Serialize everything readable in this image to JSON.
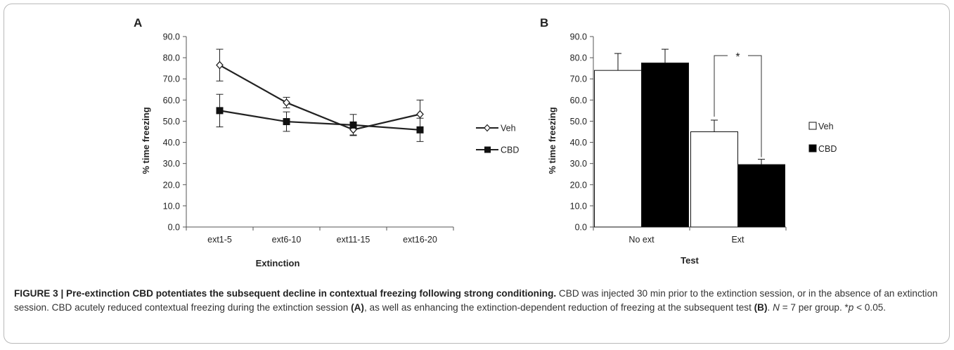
{
  "chart_data": [
    {
      "panel": "A",
      "type": "line",
      "categories": [
        "ext1-5",
        "ext6-10",
        "ext11-15",
        "ext16-20"
      ],
      "series": [
        {
          "name": "Veh",
          "values": [
            76.5,
            58.8,
            46.0,
            53.3
          ],
          "errors": [
            7.5,
            2.5,
            2.5,
            6.7
          ],
          "marker": "diamond-open"
        },
        {
          "name": "CBD",
          "values": [
            55.0,
            49.8,
            48.2,
            45.9
          ],
          "errors": [
            7.7,
            4.6,
            5.0,
            5.5
          ],
          "marker": "square-filled"
        }
      ],
      "xlabel": "Extinction",
      "ylabel": "% time freezing",
      "ylim": [
        0,
        90
      ],
      "yticks": [
        "0.0",
        "10.0",
        "20.0",
        "30.0",
        "40.0",
        "50.0",
        "60.0",
        "70.0",
        "80.0",
        "90.0"
      ],
      "grid": false,
      "legend_position": "right"
    },
    {
      "panel": "B",
      "type": "bar",
      "categories": [
        "No ext",
        "Ext"
      ],
      "series": [
        {
          "name": "Veh",
          "values": [
            74.0,
            45.0
          ],
          "errors": [
            8.0,
            5.5
          ],
          "color": "#ffffff"
        },
        {
          "name": "CBD",
          "values": [
            77.5,
            29.5
          ],
          "errors": [
            6.5,
            2.5
          ],
          "color": "#000000"
        }
      ],
      "xlabel": "Test",
      "ylabel": "% time freezing",
      "ylim": [
        0,
        90
      ],
      "yticks": [
        "0.0",
        "10.0",
        "20.0",
        "30.0",
        "40.0",
        "50.0",
        "60.0",
        "70.0",
        "80.0",
        "90.0"
      ],
      "grid": false,
      "legend_position": "right",
      "significance": {
        "category": "Ext",
        "label": "*"
      }
    }
  ],
  "caption": {
    "label": "FIGURE 3 | Pre-extinction CBD potentiates the subsequent decline in contextual freezing following strong conditioning.",
    "p1": " CBD was injected 30 min prior to the extinction session, or in the absence of an extinction session. CBD acutely reduced contextual freezing during the extinction session ",
    "refA": "(A)",
    "p2": ", as well as enhancing the extinction-dependent reduction of freezing at the subsequent test ",
    "refB": "(B)",
    "p3": ". ",
    "n_var": "N",
    "p4": " = 7 per group. *",
    "p_var": "p",
    "p5": " < 0.05."
  }
}
